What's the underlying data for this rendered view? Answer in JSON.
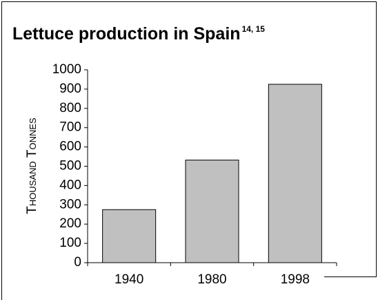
{
  "chart_data": {
    "type": "bar",
    "title": "Lettuce production in Spain",
    "title_superscript": "14, 15",
    "ylabel": "Thousand Tonnes",
    "categories": [
      "1940",
      "1980",
      "1998"
    ],
    "values": [
      275,
      532,
      925
    ],
    "color": "#c0c0c0",
    "ylim": [
      0,
      1000
    ],
    "yticks": [
      0,
      100,
      200,
      300,
      400,
      500,
      600,
      700,
      800,
      900,
      1000
    ],
    "grid": false
  }
}
